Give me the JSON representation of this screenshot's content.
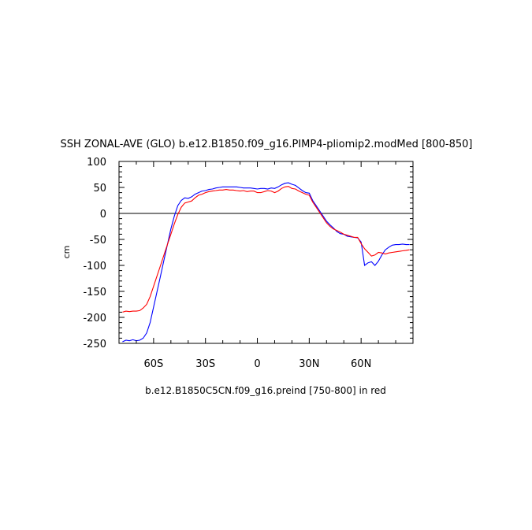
{
  "chart_data": {
    "type": "line",
    "title": "SSH ZONAL-AVE (GLO) b.e12.B1850.f09_g16.PIMP4-pliomip2.modMed [800-850]",
    "subtitle": "b.e12.B1850C5CN.f09_g16.preind [750-800] in red",
    "ylabel": "cm",
    "xlabel": "",
    "xlim": [
      -80,
      90
    ],
    "ylim": [
      -250,
      100
    ],
    "x_ticks": [
      {
        "value": -60,
        "label": "60S"
      },
      {
        "value": -30,
        "label": "30S"
      },
      {
        "value": 0,
        "label": "0"
      },
      {
        "value": 30,
        "label": "30N"
      },
      {
        "value": 60,
        "label": "60N"
      }
    ],
    "y_ticks": [
      {
        "value": 100,
        "label": "100"
      },
      {
        "value": 50,
        "label": "50"
      },
      {
        "value": 0,
        "label": "0"
      },
      {
        "value": -50,
        "label": "-50"
      },
      {
        "value": -100,
        "label": "-100"
      },
      {
        "value": -150,
        "label": "-150"
      },
      {
        "value": -200,
        "label": "-200"
      },
      {
        "value": -250,
        "label": "-250"
      }
    ],
    "reference_line": 0,
    "grid": false,
    "legend": "none",
    "series": [
      {
        "color": "#0000ff",
        "x": [
          -78,
          -76,
          -74,
          -72,
          -70,
          -68,
          -66,
          -64,
          -62,
          -60,
          -58,
          -56,
          -54,
          -52,
          -50,
          -48,
          -46,
          -44,
          -42,
          -40,
          -38,
          -36,
          -34,
          -32,
          -30,
          -28,
          -26,
          -24,
          -22,
          -20,
          -18,
          -16,
          -14,
          -12,
          -10,
          -8,
          -6,
          -4,
          -2,
          0,
          2,
          4,
          6,
          8,
          10,
          12,
          14,
          16,
          18,
          20,
          22,
          24,
          26,
          28,
          30,
          32,
          34,
          36,
          38,
          40,
          42,
          44,
          46,
          48,
          50,
          52,
          54,
          56,
          58,
          60,
          62,
          64,
          66,
          68,
          70,
          72,
          74,
          76,
          78,
          80,
          82,
          84,
          86,
          88
        ],
        "y": [
          -247,
          -244,
          -245,
          -243,
          -245,
          -244,
          -240,
          -230,
          -210,
          -180,
          -150,
          -120,
          -90,
          -60,
          -30,
          -5,
          15,
          25,
          30,
          29,
          32,
          37,
          40,
          43,
          44,
          46,
          47,
          49,
          50,
          51,
          51,
          51,
          51,
          51,
          50,
          49,
          49,
          49,
          48,
          47,
          48,
          48,
          47,
          49,
          48,
          51,
          55,
          58,
          59,
          56,
          54,
          49,
          44,
          40,
          39,
          25,
          15,
          5,
          -5,
          -15,
          -22,
          -28,
          -35,
          -39,
          -40,
          -44,
          -45,
          -46,
          -47,
          -55,
          -100,
          -95,
          -93,
          -100,
          -92,
          -80,
          -70,
          -65,
          -61,
          -60,
          -60,
          -59,
          -60,
          -60
        ]
      },
      {
        "color": "#ff0000",
        "x": [
          -78,
          -76,
          -74,
          -72,
          -70,
          -68,
          -66,
          -64,
          -62,
          -60,
          -58,
          -56,
          -54,
          -52,
          -50,
          -48,
          -46,
          -44,
          -42,
          -40,
          -38,
          -36,
          -34,
          -32,
          -30,
          -28,
          -26,
          -24,
          -22,
          -20,
          -18,
          -16,
          -14,
          -12,
          -10,
          -8,
          -6,
          -4,
          -2,
          0,
          2,
          4,
          6,
          8,
          10,
          12,
          14,
          16,
          18,
          20,
          22,
          24,
          26,
          28,
          30,
          32,
          34,
          36,
          38,
          40,
          42,
          44,
          46,
          48,
          50,
          52,
          54,
          56,
          58,
          60,
          62,
          64,
          66,
          68,
          70,
          72,
          74,
          76,
          78,
          80,
          82,
          84,
          86,
          88
        ],
        "y": [
          -190,
          -188,
          -189,
          -188,
          -188,
          -187,
          -182,
          -175,
          -160,
          -140,
          -120,
          -100,
          -80,
          -60,
          -40,
          -20,
          -2,
          12,
          20,
          22,
          24,
          30,
          35,
          37,
          40,
          42,
          43,
          44,
          45,
          45,
          46,
          45,
          45,
          44,
          43,
          44,
          42,
          43,
          43,
          40,
          40,
          42,
          44,
          43,
          40,
          43,
          48,
          51,
          52,
          48,
          47,
          43,
          40,
          37,
          35,
          22,
          12,
          2,
          -8,
          -18,
          -25,
          -30,
          -33,
          -36,
          -40,
          -42,
          -44,
          -46,
          -46,
          -58,
          -68,
          -75,
          -82,
          -80,
          -75,
          -76,
          -78,
          -76,
          -75,
          -74,
          -73,
          -72,
          -71,
          -70
        ]
      }
    ]
  }
}
